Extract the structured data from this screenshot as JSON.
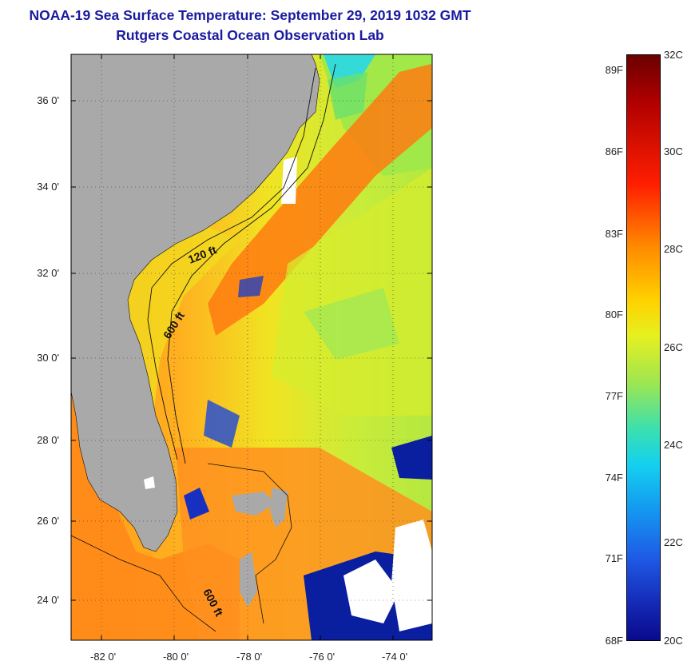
{
  "title": {
    "line1": "NOAA-19 Sea Surface Temperature:  September 29, 2019 1032 GMT",
    "line2": "Rutgers Coastal Ocean Observation Lab"
  },
  "map": {
    "lat_labels": [
      "36 0'",
      "34 0'",
      "32 0'",
      "30 0'",
      "28 0'",
      "26 0'",
      "24 0'"
    ],
    "lon_labels": [
      "-82 0'",
      "-80 0'",
      "-78 0'",
      "-76 0'",
      "-74 0'"
    ],
    "contour_labels": [
      "120 ft",
      "600 ft",
      "600 ft"
    ],
    "colors": {
      "land": "#a9a9a9",
      "cloud": "#ffffff",
      "deep_blue": "#0a1ea0",
      "orange": "#ff9a1a",
      "yellow": "#f5e61e",
      "green": "#9fe84a",
      "cyan": "#28d8e8"
    }
  },
  "colorbar": {
    "fahrenheit_labels": [
      "89F",
      "86F",
      "83F",
      "80F",
      "77F",
      "74F",
      "71F",
      "68F"
    ],
    "celsius_labels": [
      "32C",
      "30C",
      "28C",
      "26C",
      "24C",
      "22C",
      "20C"
    ],
    "range_c": [
      20,
      32
    ],
    "range_f": [
      68,
      89.6
    ],
    "colormap": "jet"
  }
}
